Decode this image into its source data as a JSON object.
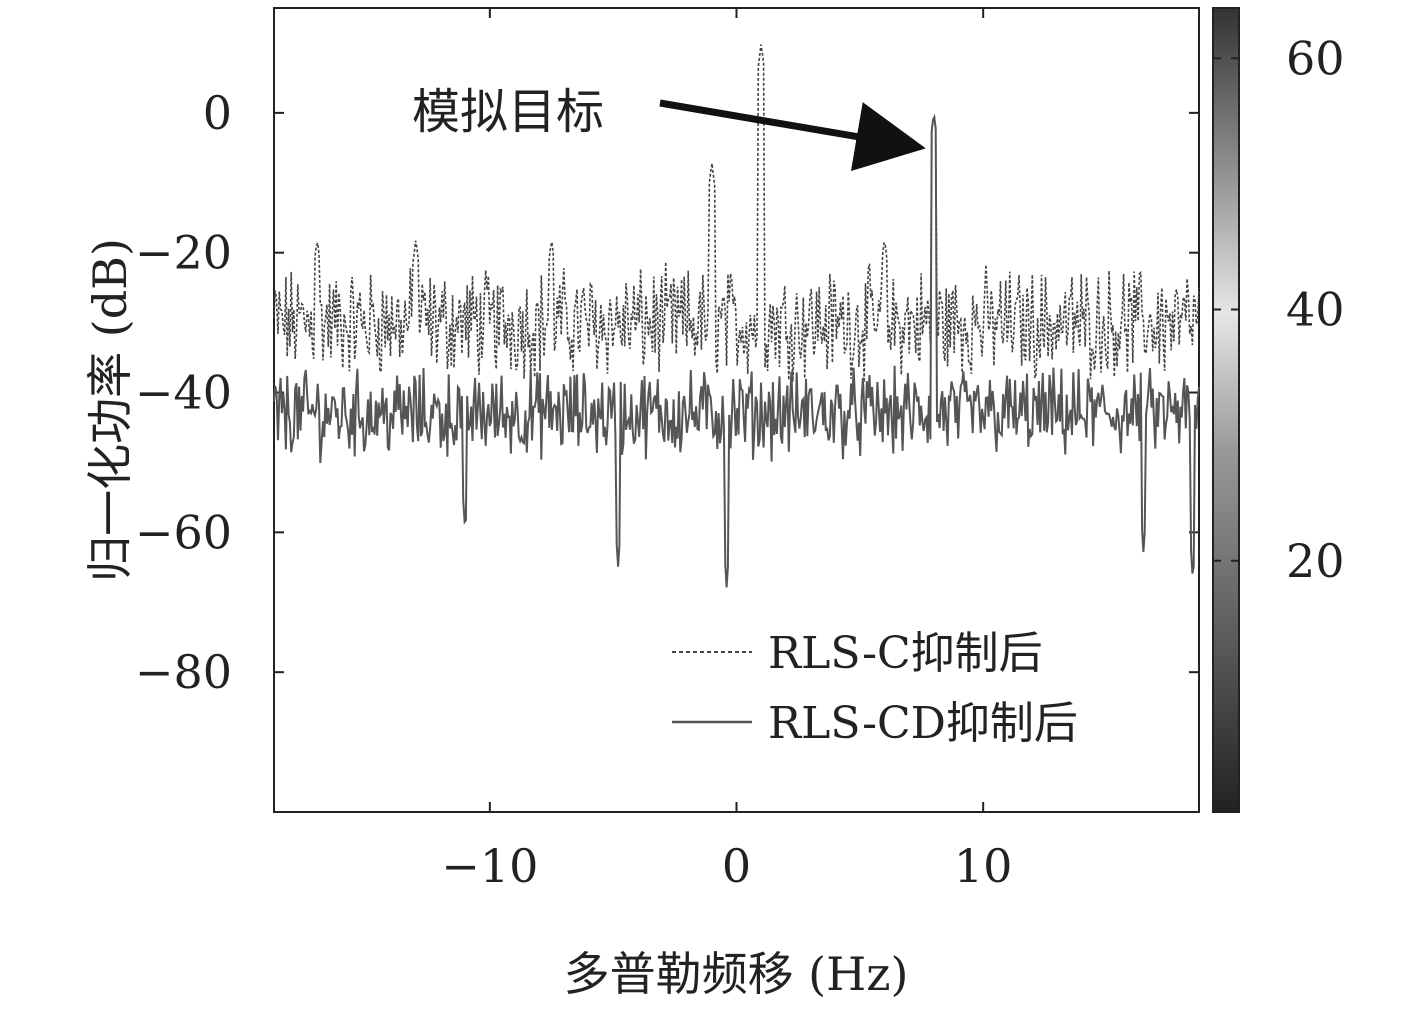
{
  "chart_data": {
    "type": "line",
    "title": "",
    "xlabel": "多普勒频移 (Hz)",
    "ylabel": "归一化功率 (dB)",
    "xlim": [
      -18.75,
      18.75
    ],
    "ylim": [
      -100,
      15
    ],
    "x_ticks": [
      -10,
      0,
      10
    ],
    "x_tick_labels": [
      "−10",
      "0",
      "10"
    ],
    "y_ticks": [
      0,
      -20,
      -40,
      -60,
      -80
    ],
    "y_tick_labels": [
      "0",
      "−20",
      "−40",
      "−60",
      "−80"
    ],
    "grid": false,
    "legend_position": "lower-right",
    "colorbar": {
      "range": [
        0,
        64
      ],
      "ticks": [
        20,
        40,
        60
      ],
      "tick_labels": [
        "20",
        "40",
        "60"
      ],
      "colormap": "gray"
    },
    "annotation": {
      "text": "模拟目标",
      "target": [
        8,
        0
      ]
    },
    "series": [
      {
        "name": "RLS-C抑制后",
        "style": "dashed",
        "color": "#444444",
        "baseline_db": -30,
        "noise_spread_db": 10,
        "peaks": [
          [
            -1.0,
            -7
          ],
          [
            1.0,
            10
          ],
          [
            8.0,
            0
          ],
          [
            -7.5,
            -18
          ],
          [
            -13,
            -18
          ],
          [
            -17,
            -18
          ],
          [
            6,
            -18
          ]
        ]
      },
      {
        "name": "RLS-CD抑制后",
        "style": "solid",
        "color": "#555555",
        "baseline_db": -43,
        "noise_spread_db": 8,
        "peaks": [
          [
            8.0,
            0
          ]
        ],
        "dips": [
          [
            -0.4,
            -68
          ],
          [
            -4.8,
            -65
          ],
          [
            -11,
            -60
          ],
          [
            18.5,
            -67
          ],
          [
            16.5,
            -63
          ]
        ]
      }
    ]
  }
}
